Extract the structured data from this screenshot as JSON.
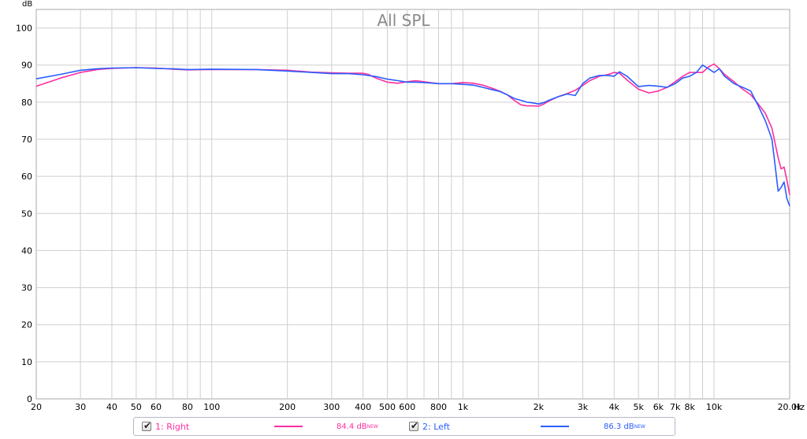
{
  "chart_data": {
    "type": "line",
    "title": "All SPL",
    "y_unit_label": "dB",
    "x_unit_label": "Hz",
    "xscale": "log",
    "xlim": [
      20,
      20000
    ],
    "ylim": [
      0,
      105
    ],
    "grid": true,
    "legend_position": "bottom",
    "x_ticks": [
      {
        "v": 20,
        "label": "20"
      },
      {
        "v": 30,
        "label": "30"
      },
      {
        "v": 40,
        "label": "40"
      },
      {
        "v": 50,
        "label": "50"
      },
      {
        "v": 60,
        "label": "60"
      },
      {
        "v": 80,
        "label": "80"
      },
      {
        "v": 100,
        "label": "100"
      },
      {
        "v": 200,
        "label": "200"
      },
      {
        "v": 300,
        "label": "300"
      },
      {
        "v": 400,
        "label": "400"
      },
      {
        "v": 500,
        "label": "500"
      },
      {
        "v": 600,
        "label": "600"
      },
      {
        "v": 800,
        "label": "800"
      },
      {
        "v": 1000,
        "label": "1k"
      },
      {
        "v": 2000,
        "label": "2k"
      },
      {
        "v": 3000,
        "label": "3k"
      },
      {
        "v": 4000,
        "label": "4k"
      },
      {
        "v": 5000,
        "label": "5k"
      },
      {
        "v": 6000,
        "label": "6k"
      },
      {
        "v": 7000,
        "label": "7k"
      },
      {
        "v": 8000,
        "label": "8k"
      },
      {
        "v": 10000,
        "label": "10k"
      },
      {
        "v": 20000,
        "label": "20.0k"
      }
    ],
    "y_ticks": [
      0,
      10,
      20,
      30,
      40,
      50,
      60,
      70,
      80,
      90,
      100
    ],
    "series": [
      {
        "name": "1: Right",
        "value_label": "84.4 dB",
        "value_suffix": "NEW",
        "color": "#ff2ea0",
        "points": [
          [
            20,
            84.3
          ],
          [
            25,
            86.5
          ],
          [
            30,
            88.0
          ],
          [
            35,
            88.8
          ],
          [
            40,
            89.1
          ],
          [
            50,
            89.3
          ],
          [
            60,
            89.2
          ],
          [
            70,
            88.9
          ],
          [
            80,
            88.7
          ],
          [
            100,
            88.8
          ],
          [
            150,
            88.8
          ],
          [
            200,
            88.6
          ],
          [
            250,
            88.1
          ],
          [
            300,
            87.9
          ],
          [
            350,
            87.8
          ],
          [
            400,
            87.8
          ],
          [
            420,
            87.5
          ],
          [
            450,
            86.5
          ],
          [
            500,
            85.4
          ],
          [
            550,
            85.1
          ],
          [
            600,
            85.5
          ],
          [
            650,
            85.8
          ],
          [
            700,
            85.5
          ],
          [
            800,
            85.0
          ],
          [
            900,
            85.0
          ],
          [
            1000,
            85.3
          ],
          [
            1100,
            85.1
          ],
          [
            1200,
            84.6
          ],
          [
            1300,
            83.8
          ],
          [
            1400,
            83.0
          ],
          [
            1500,
            82.0
          ],
          [
            1600,
            80.5
          ],
          [
            1700,
            79.3
          ],
          [
            1800,
            79.0
          ],
          [
            1900,
            79.0
          ],
          [
            2000,
            78.9
          ],
          [
            2100,
            79.5
          ],
          [
            2200,
            80.3
          ],
          [
            2400,
            81.5
          ],
          [
            2600,
            82.3
          ],
          [
            2800,
            83.2
          ],
          [
            3000,
            84.5
          ],
          [
            3200,
            85.8
          ],
          [
            3500,
            87.0
          ],
          [
            3800,
            87.5
          ],
          [
            4000,
            88.0
          ],
          [
            4200,
            87.8
          ],
          [
            4500,
            86.0
          ],
          [
            5000,
            83.5
          ],
          [
            5500,
            82.5
          ],
          [
            6000,
            83.0
          ],
          [
            6500,
            84.0
          ],
          [
            7000,
            85.5
          ],
          [
            7500,
            87.0
          ],
          [
            8000,
            88.0
          ],
          [
            8500,
            88.0
          ],
          [
            9000,
            88.0
          ],
          [
            9500,
            89.5
          ],
          [
            10000,
            90.3
          ],
          [
            10500,
            89.0
          ],
          [
            11000,
            87.5
          ],
          [
            12000,
            85.5
          ],
          [
            13000,
            83.5
          ],
          [
            14000,
            82.0
          ],
          [
            15000,
            79.5
          ],
          [
            16000,
            77.0
          ],
          [
            17000,
            73.0
          ],
          [
            18000,
            65.0
          ],
          [
            18500,
            62.0
          ],
          [
            19000,
            62.5
          ],
          [
            19500,
            59.0
          ],
          [
            20000,
            55.0
          ]
        ]
      },
      {
        "name": "2: Left",
        "value_label": "86.3 dB",
        "value_suffix": "NEW",
        "color": "#2a5eff",
        "points": [
          [
            20,
            86.3
          ],
          [
            25,
            87.5
          ],
          [
            30,
            88.6
          ],
          [
            35,
            89.0
          ],
          [
            40,
            89.2
          ],
          [
            50,
            89.3
          ],
          [
            60,
            89.1
          ],
          [
            70,
            89.0
          ],
          [
            80,
            88.8
          ],
          [
            100,
            88.9
          ],
          [
            150,
            88.8
          ],
          [
            200,
            88.4
          ],
          [
            250,
            88.0
          ],
          [
            300,
            87.7
          ],
          [
            350,
            87.7
          ],
          [
            400,
            87.4
          ],
          [
            450,
            86.9
          ],
          [
            500,
            86.2
          ],
          [
            550,
            85.8
          ],
          [
            600,
            85.4
          ],
          [
            650,
            85.4
          ],
          [
            700,
            85.3
          ],
          [
            800,
            85.0
          ],
          [
            900,
            85.0
          ],
          [
            1000,
            84.8
          ],
          [
            1100,
            84.6
          ],
          [
            1200,
            84.0
          ],
          [
            1300,
            83.4
          ],
          [
            1400,
            82.9
          ],
          [
            1500,
            82.0
          ],
          [
            1600,
            81.0
          ],
          [
            1700,
            80.5
          ],
          [
            1800,
            80.0
          ],
          [
            1900,
            79.8
          ],
          [
            2000,
            79.5
          ],
          [
            2100,
            79.9
          ],
          [
            2200,
            80.5
          ],
          [
            2400,
            81.5
          ],
          [
            2600,
            82.2
          ],
          [
            2800,
            81.8
          ],
          [
            3000,
            85.0
          ],
          [
            3200,
            86.5
          ],
          [
            3500,
            87.2
          ],
          [
            3800,
            87.2
          ],
          [
            4000,
            87.0
          ],
          [
            4200,
            88.2
          ],
          [
            4500,
            87.0
          ],
          [
            5000,
            84.2
          ],
          [
            5500,
            84.5
          ],
          [
            6000,
            84.3
          ],
          [
            6500,
            84.0
          ],
          [
            7000,
            85.0
          ],
          [
            7500,
            86.5
          ],
          [
            8000,
            87.0
          ],
          [
            8500,
            88.0
          ],
          [
            9000,
            90.0
          ],
          [
            9500,
            89.0
          ],
          [
            10000,
            88.0
          ],
          [
            10500,
            89.0
          ],
          [
            11000,
            87.0
          ],
          [
            12000,
            85.0
          ],
          [
            13000,
            84.0
          ],
          [
            14000,
            83.0
          ],
          [
            15000,
            79.0
          ],
          [
            16000,
            75.0
          ],
          [
            17000,
            70.0
          ],
          [
            17500,
            63.0
          ],
          [
            18000,
            56.0
          ],
          [
            18500,
            57.0
          ],
          [
            19000,
            58.5
          ],
          [
            19500,
            54.0
          ],
          [
            20000,
            52.0
          ]
        ]
      }
    ]
  }
}
